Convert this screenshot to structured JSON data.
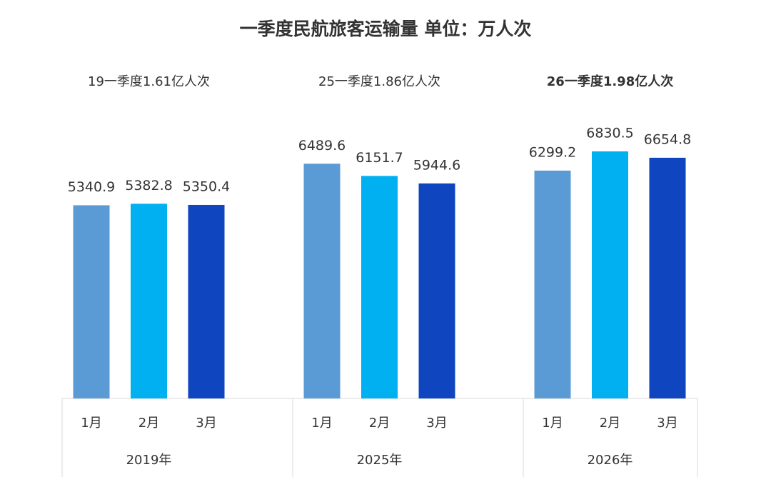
{
  "chart_data": {
    "type": "bar",
    "title": "一季度民航旅客运输量 单位：万人次",
    "categories": [
      "1月",
      "2月",
      "3月"
    ],
    "colors": [
      "#5b9bd5",
      "#00b0f0",
      "#0f45bf"
    ],
    "groups": [
      {
        "name": "2019年",
        "note": "19一季度1.61亿人次",
        "bold": false,
        "values": [
          5340.9,
          5382.8,
          5350.4
        ]
      },
      {
        "name": "2025年",
        "note": "25一季度1.86亿人次",
        "bold": false,
        "values": [
          6489.6,
          6151.7,
          5944.6
        ]
      },
      {
        "name": "2026年",
        "note": "26一季度1.98亿人次",
        "bold": true,
        "values": [
          6299.2,
          6830.5,
          6654.8
        ]
      }
    ]
  }
}
